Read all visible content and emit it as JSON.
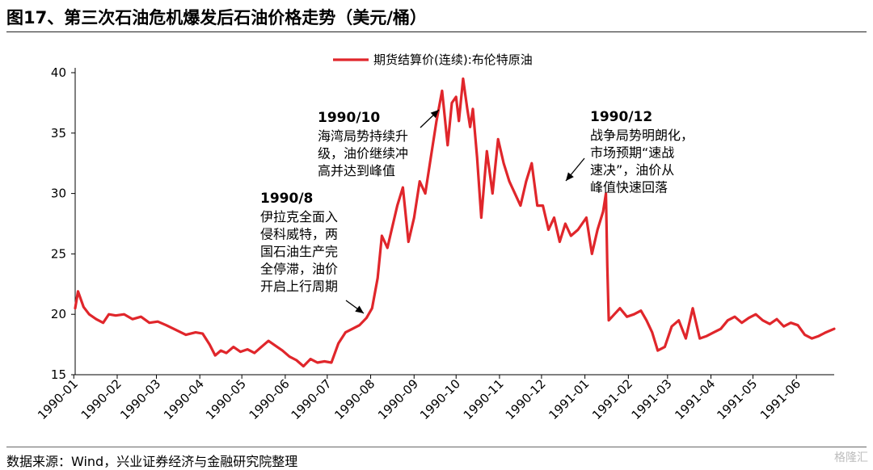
{
  "figure": {
    "title": "图17、第三次石油危机爆发后石油价格走势（美元/桶）",
    "source": "数据来源：Wind，兴业证券经济与金融研究院整理",
    "watermark": "格隆汇"
  },
  "chart_data": {
    "type": "line",
    "title": "",
    "xlabel": "",
    "ylabel": "",
    "ylim": [
      15,
      40
    ],
    "yticks": [
      15,
      20,
      25,
      30,
      35,
      40
    ],
    "xlim": [
      "1990-01-02",
      "1991-06-28"
    ],
    "xticks": [
      "1990-01",
      "1990-02",
      "1990-03",
      "1990-04",
      "1990-05",
      "1990-06",
      "1990-07",
      "1990-08",
      "1990-09",
      "1990-10",
      "1990-11",
      "1990-12",
      "1991-01",
      "1991-02",
      "1991-03",
      "1991-04",
      "1991-05",
      "1991-06"
    ],
    "grid": false,
    "legend_position": "top-center",
    "colors": {
      "series": "#e0262b"
    },
    "series": [
      {
        "name": "期货结算价(连续):布伦特原油",
        "color": "#e0262b",
        "x": [
          "1990-01-02",
          "1990-01-04",
          "1990-01-08",
          "1990-01-12",
          "1990-01-17",
          "1990-01-22",
          "1990-01-26",
          "1990-01-31",
          "1990-02-06",
          "1990-02-12",
          "1990-02-18",
          "1990-02-24",
          "1990-03-02",
          "1990-03-08",
          "1990-03-15",
          "1990-03-22",
          "1990-03-29",
          "1990-04-03",
          "1990-04-08",
          "1990-04-12",
          "1990-04-16",
          "1990-04-20",
          "1990-04-25",
          "1990-04-30",
          "1990-05-05",
          "1990-05-10",
          "1990-05-15",
          "1990-05-20",
          "1990-05-25",
          "1990-05-30",
          "1990-06-04",
          "1990-06-09",
          "1990-06-14",
          "1990-06-19",
          "1990-06-24",
          "1990-06-29",
          "1990-07-04",
          "1990-07-09",
          "1990-07-14",
          "1990-07-19",
          "1990-07-24",
          "1990-07-29",
          "1990-08-02",
          "1990-08-06",
          "1990-08-09",
          "1990-08-13",
          "1990-08-16",
          "1990-08-20",
          "1990-08-24",
          "1990-08-28",
          "1990-09-01",
          "1990-09-05",
          "1990-09-09",
          "1990-09-13",
          "1990-09-17",
          "1990-09-21",
          "1990-09-25",
          "1990-09-28",
          "1990-10-01",
          "1990-10-03",
          "1990-10-06",
          "1990-10-09",
          "1990-10-11",
          "1990-10-13",
          "1990-10-16",
          "1990-10-19",
          "1990-10-23",
          "1990-10-27",
          "1990-10-31",
          "1990-11-04",
          "1990-11-08",
          "1990-11-12",
          "1990-11-16",
          "1990-11-20",
          "1990-11-24",
          "1990-11-28",
          "1990-12-02",
          "1990-12-06",
          "1990-12-10",
          "1990-12-14",
          "1990-12-18",
          "1990-12-22",
          "1990-12-27",
          "1991-01-02",
          "1991-01-06",
          "1991-01-10",
          "1991-01-14",
          "1991-01-16",
          "1991-01-17",
          "1991-01-18",
          "1991-01-22",
          "1991-01-26",
          "1991-01-31",
          "1991-02-05",
          "1991-02-10",
          "1991-02-14",
          "1991-02-18",
          "1991-02-22",
          "1991-02-27",
          "1991-03-04",
          "1991-03-09",
          "1991-03-14",
          "1991-03-19",
          "1991-03-24",
          "1991-03-29",
          "1991-04-03",
          "1991-04-08",
          "1991-04-13",
          "1991-04-18",
          "1991-04-23",
          "1991-04-28",
          "1991-05-03",
          "1991-05-08",
          "1991-05-13",
          "1991-05-18",
          "1991-05-23",
          "1991-05-28",
          "1991-06-02",
          "1991-06-07",
          "1991-06-12",
          "1991-06-17",
          "1991-06-22",
          "1991-06-28"
        ],
        "values": [
          20.5,
          21.9,
          20.6,
          20.0,
          19.6,
          19.3,
          20.0,
          19.9,
          20.0,
          19.6,
          19.8,
          19.3,
          19.4,
          19.1,
          18.7,
          18.3,
          18.5,
          18.4,
          17.5,
          16.6,
          17.0,
          16.8,
          17.3,
          16.9,
          17.1,
          16.8,
          17.3,
          17.8,
          17.4,
          17.0,
          16.5,
          16.2,
          15.7,
          16.3,
          16.0,
          16.1,
          16.0,
          17.6,
          18.5,
          18.8,
          19.1,
          19.7,
          20.5,
          23.0,
          26.5,
          25.5,
          27.0,
          29.0,
          30.5,
          26.0,
          28.0,
          31.0,
          30.0,
          33.0,
          36.0,
          38.5,
          34.0,
          37.5,
          38.0,
          36.0,
          39.5,
          37.0,
          35.5,
          37.0,
          33.0,
          28.0,
          33.5,
          30.0,
          34.5,
          32.5,
          31.0,
          30.0,
          29.0,
          31.0,
          32.5,
          29.0,
          29.0,
          27.0,
          28.0,
          26.0,
          27.5,
          26.5,
          27.0,
          28.0,
          25.0,
          27.0,
          28.5,
          30.0,
          24.0,
          19.5,
          20.0,
          20.5,
          19.8,
          20.0,
          20.3,
          19.5,
          18.5,
          17.0,
          17.3,
          19.0,
          19.5,
          18.0,
          20.5,
          18.0,
          18.2,
          18.5,
          18.8,
          19.5,
          19.8,
          19.3,
          19.7,
          20.0,
          19.5,
          19.2,
          19.6,
          19.0,
          19.3,
          19.1,
          18.3,
          18.0,
          18.2,
          18.5,
          18.8
        ]
      }
    ],
    "annotations": [
      {
        "date": "1990/8",
        "text": [
          "伊拉克全面入",
          "侵科威特，两",
          "国石油生产完",
          "全停滞，油价",
          "开启上行周期"
        ]
      },
      {
        "date": "1990/10",
        "text": [
          "海湾局势持续升",
          "级，油价继续冲",
          "高并达到峰值"
        ]
      },
      {
        "date": "1990/12",
        "text": [
          "战争局势明朗化，",
          "市场预期“速战",
          "速决”，油价从",
          "峰值快速回落"
        ]
      }
    ]
  }
}
